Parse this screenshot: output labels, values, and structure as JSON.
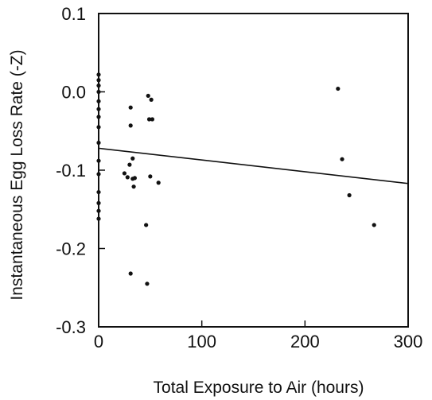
{
  "chart_data": {
    "type": "scatter",
    "xlabel": "Total Exposure to Air (hours)",
    "ylabel": "Instantaneous Egg Loss Rate (-Z)",
    "xlim": [
      0,
      300
    ],
    "ylim": [
      -0.3,
      0.1
    ],
    "x_ticks": [
      {
        "value": 0,
        "label": "0"
      },
      {
        "value": 100,
        "label": "100"
      },
      {
        "value": 200,
        "label": "200"
      },
      {
        "value": 300,
        "label": "300"
      }
    ],
    "y_ticks": [
      {
        "value": 0.1,
        "label": "0.1"
      },
      {
        "value": 0.0,
        "label": "0.0"
      },
      {
        "value": -0.1,
        "label": "-0.1"
      },
      {
        "value": -0.2,
        "label": "-0.2"
      },
      {
        "value": -0.3,
        "label": "-0.3"
      }
    ],
    "grid": false,
    "points": [
      {
        "x": 0,
        "y": 0.022
      },
      {
        "x": 0,
        "y": 0.015
      },
      {
        "x": 0,
        "y": 0.008
      },
      {
        "x": 0,
        "y": 0.0
      },
      {
        "x": 0,
        "y": -0.012
      },
      {
        "x": 0,
        "y": -0.022
      },
      {
        "x": 0,
        "y": -0.032
      },
      {
        "x": 0,
        "y": -0.045
      },
      {
        "x": 0,
        "y": -0.065
      },
      {
        "x": 0,
        "y": -0.088
      },
      {
        "x": 0,
        "y": -0.105
      },
      {
        "x": 0,
        "y": -0.128
      },
      {
        "x": 0,
        "y": -0.142
      },
      {
        "x": 0,
        "y": -0.152
      },
      {
        "x": 0,
        "y": -0.162
      },
      {
        "x": 25,
        "y": -0.104
      },
      {
        "x": 28,
        "y": -0.109
      },
      {
        "x": 30,
        "y": -0.093
      },
      {
        "x": 31,
        "y": -0.02
      },
      {
        "x": 31,
        "y": -0.043
      },
      {
        "x": 31,
        "y": -0.232
      },
      {
        "x": 33,
        "y": -0.085
      },
      {
        "x": 33,
        "y": -0.111
      },
      {
        "x": 34,
        "y": -0.121
      },
      {
        "x": 35,
        "y": -0.11
      },
      {
        "x": 46,
        "y": -0.17
      },
      {
        "x": 47,
        "y": -0.245
      },
      {
        "x": 48,
        "y": -0.005
      },
      {
        "x": 49,
        "y": -0.035
      },
      {
        "x": 50,
        "y": -0.108
      },
      {
        "x": 51,
        "y": -0.01
      },
      {
        "x": 52,
        "y": -0.035
      },
      {
        "x": 58,
        "y": -0.116
      },
      {
        "x": 232,
        "y": 0.004
      },
      {
        "x": 236,
        "y": -0.086
      },
      {
        "x": 243,
        "y": -0.132
      },
      {
        "x": 267,
        "y": -0.17
      }
    ],
    "trendline": {
      "x": [
        0,
        300
      ],
      "y": [
        -0.072,
        -0.117
      ]
    }
  }
}
